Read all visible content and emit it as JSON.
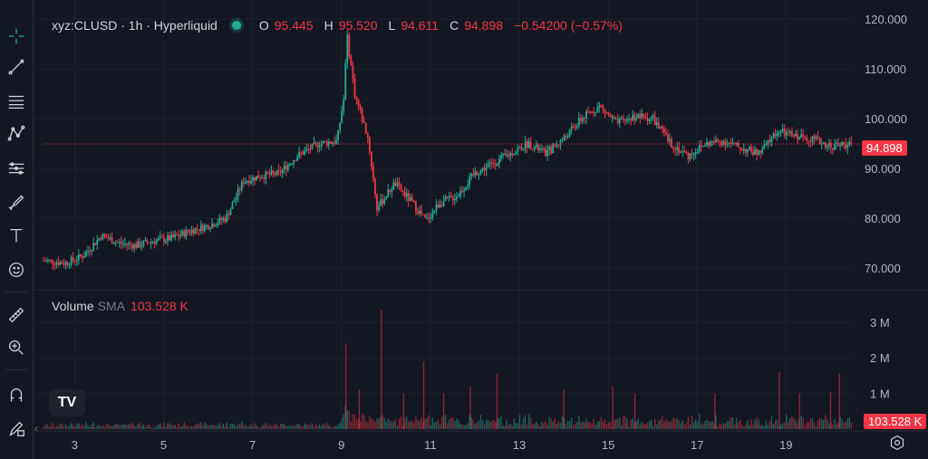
{
  "legend": {
    "symbol": "xyz:CLUSD · 1h · Hyperliquid",
    "o_label": "O",
    "o": "95.445",
    "h_label": "H",
    "h": "95.520",
    "l_label": "L",
    "l": "94.611",
    "c_label": "C",
    "c": "94.898",
    "change": "−0.54200 (−0.57%)"
  },
  "volume_legend": {
    "name": "Volume",
    "sma": "SMA",
    "value": "103.528 K"
  },
  "price_badge": "94.898",
  "volume_badge": "103.528 K",
  "logo_text": "TV",
  "collapse_glyph": "‹",
  "colors": {
    "up": "#22ab94",
    "down": "#f23645",
    "grid": "#1e222d",
    "bg": "#131722"
  },
  "tools": [
    "crosshair-icon",
    "trend-line-icon",
    "fib-icon",
    "pattern-icon",
    "measure-lines-icon",
    "brush-icon",
    "text-icon",
    "emoji-icon",
    "ruler-icon",
    "zoom-icon",
    "magnet-icon",
    "lock-pencil-icon"
  ],
  "chart_data": {
    "type": "candlestick",
    "title": "",
    "x_ticks": [
      "3",
      "5",
      "7",
      "9",
      "11",
      "13",
      "15",
      "17",
      "19"
    ],
    "y_ticks": [
      "120.000",
      "110.000",
      "100.000",
      "90.000",
      "80.000",
      "70.000"
    ],
    "ylim": [
      66,
      122
    ],
    "volume_ticks": [
      "3 M",
      "2 M",
      "1 M"
    ],
    "volume_ylim": [
      0,
      3.4
    ],
    "last_price": 94.898,
    "volume_sma": 0.103528,
    "x_range_days": [
      2.3,
      20.5
    ],
    "price_path": [
      [
        2.3,
        71.5
      ],
      [
        2.8,
        71.0
      ],
      [
        3.2,
        72.5
      ],
      [
        3.6,
        76.5
      ],
      [
        4.0,
        75.0
      ],
      [
        4.4,
        74.5
      ],
      [
        4.8,
        75.5
      ],
      [
        5.2,
        76.0
      ],
      [
        5.6,
        77.5
      ],
      [
        6.0,
        78.5
      ],
      [
        6.4,
        80.0
      ],
      [
        6.8,
        87.5
      ],
      [
        7.2,
        88.5
      ],
      [
        7.6,
        89.0
      ],
      [
        8.0,
        92.5
      ],
      [
        8.5,
        95.0
      ],
      [
        8.9,
        95.5
      ],
      [
        9.05,
        104.0
      ],
      [
        9.12,
        117.0
      ],
      [
        9.3,
        105.0
      ],
      [
        9.6,
        96.0
      ],
      [
        9.8,
        82.0
      ],
      [
        10.2,
        87.0
      ],
      [
        10.6,
        83.0
      ],
      [
        10.9,
        79.5
      ],
      [
        11.2,
        83.0
      ],
      [
        11.6,
        84.5
      ],
      [
        12.0,
        89.0
      ],
      [
        12.4,
        91.0
      ],
      [
        12.8,
        93.0
      ],
      [
        13.2,
        95.0
      ],
      [
        13.6,
        93.0
      ],
      [
        14.0,
        96.0
      ],
      [
        14.4,
        100.0
      ],
      [
        14.8,
        102.5
      ],
      [
        15.2,
        99.0
      ],
      [
        15.6,
        100.5
      ],
      [
        16.0,
        100.0
      ],
      [
        16.4,
        95.0
      ],
      [
        16.8,
        92.5
      ],
      [
        17.2,
        95.0
      ],
      [
        17.6,
        95.5
      ],
      [
        18.0,
        94.0
      ],
      [
        18.4,
        93.0
      ],
      [
        18.8,
        97.5
      ],
      [
        19.2,
        96.5
      ],
      [
        19.6,
        96.0
      ],
      [
        20.0,
        94.5
      ],
      [
        20.4,
        94.9
      ]
    ],
    "volume_spikes": [
      [
        9.1,
        2.4
      ],
      [
        9.9,
        3.35
      ],
      [
        10.85,
        1.9
      ],
      [
        11.9,
        1.2
      ],
      [
        12.5,
        1.55
      ],
      [
        14.0,
        1.1
      ],
      [
        15.1,
        1.2
      ],
      [
        15.6,
        1.0
      ],
      [
        17.4,
        1.0
      ],
      [
        18.85,
        1.6
      ],
      [
        19.3,
        1.0
      ],
      [
        20.0,
        1.05
      ],
      [
        20.2,
        1.55
      ],
      [
        9.4,
        1.1
      ],
      [
        10.4,
        1.0
      ],
      [
        11.3,
        1.0
      ]
    ]
  }
}
